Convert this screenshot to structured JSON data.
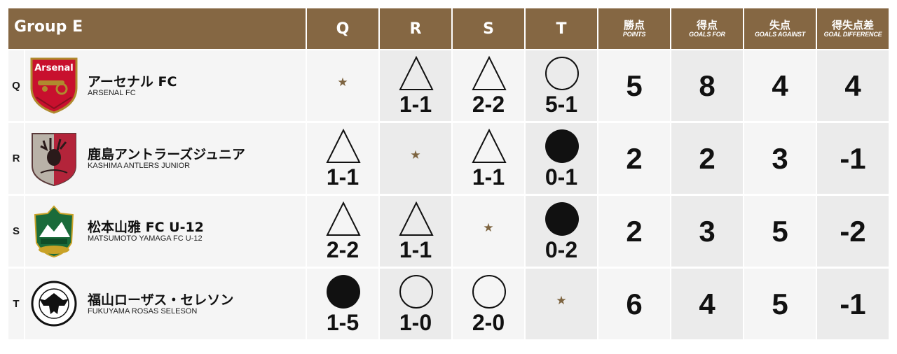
{
  "group_title": "Group E",
  "opponent_headers": [
    "Q",
    "R",
    "S",
    "T"
  ],
  "stat_headers": [
    {
      "jp": "勝点",
      "en": "POINTS"
    },
    {
      "jp": "得点",
      "en": "GOALS FOR"
    },
    {
      "jp": "失点",
      "en": "GOALS AGAINST"
    },
    {
      "jp": "得失点差",
      "en": "GOAL DIFFERENCE"
    }
  ],
  "self_marker": "★",
  "teams": [
    {
      "label": "Q",
      "name_jp": "アーセナル FC",
      "name_en": "ARSENAL FC",
      "crest": "arsenal-crest",
      "crest_text": "Arsenal",
      "results": [
        {
          "type": "self"
        },
        {
          "type": "draw",
          "score": "1-1"
        },
        {
          "type": "draw",
          "score": "2-2"
        },
        {
          "type": "win",
          "score": "5-1"
        }
      ],
      "points": "5",
      "goals_for": "8",
      "goals_against": "4",
      "goal_difference": "4"
    },
    {
      "label": "R",
      "name_jp": "鹿島アントラーズジュニア",
      "name_en": "KASHIMA ANTLERS JUNIOR",
      "crest": "kashima-antlers-crest",
      "crest_text": "",
      "results": [
        {
          "type": "draw",
          "score": "1-1"
        },
        {
          "type": "self"
        },
        {
          "type": "draw",
          "score": "1-1"
        },
        {
          "type": "loss",
          "score": "0-1"
        }
      ],
      "points": "2",
      "goals_for": "2",
      "goals_against": "3",
      "goal_difference": "-1"
    },
    {
      "label": "S",
      "name_jp": "松本山雅 FC U-12",
      "name_en": "MATSUMOTO YAMAGA FC U-12",
      "crest": "matsumoto-yamaga-crest",
      "crest_text": "",
      "results": [
        {
          "type": "draw",
          "score": "2-2"
        },
        {
          "type": "draw",
          "score": "1-1"
        },
        {
          "type": "self"
        },
        {
          "type": "loss",
          "score": "0-2"
        }
      ],
      "points": "2",
      "goals_for": "3",
      "goals_against": "5",
      "goal_difference": "-2"
    },
    {
      "label": "T",
      "name_jp": "福山ローザス・セレソン",
      "name_en": "FUKUYAMA ROSAS SELESON",
      "crest": "fukuyama-rosas-crest",
      "crest_text": "",
      "results": [
        {
          "type": "loss",
          "score": "1-5"
        },
        {
          "type": "win",
          "score": "1-0"
        },
        {
          "type": "win",
          "score": "2-0"
        },
        {
          "type": "self"
        }
      ],
      "points": "6",
      "goals_for": "4",
      "goals_against": "5",
      "goal_difference": "-1"
    }
  ],
  "colors": {
    "header_bg": "#856743",
    "star": "#7d6440",
    "row_light": "#f5f5f5",
    "row_dark": "#ebebeb"
  }
}
